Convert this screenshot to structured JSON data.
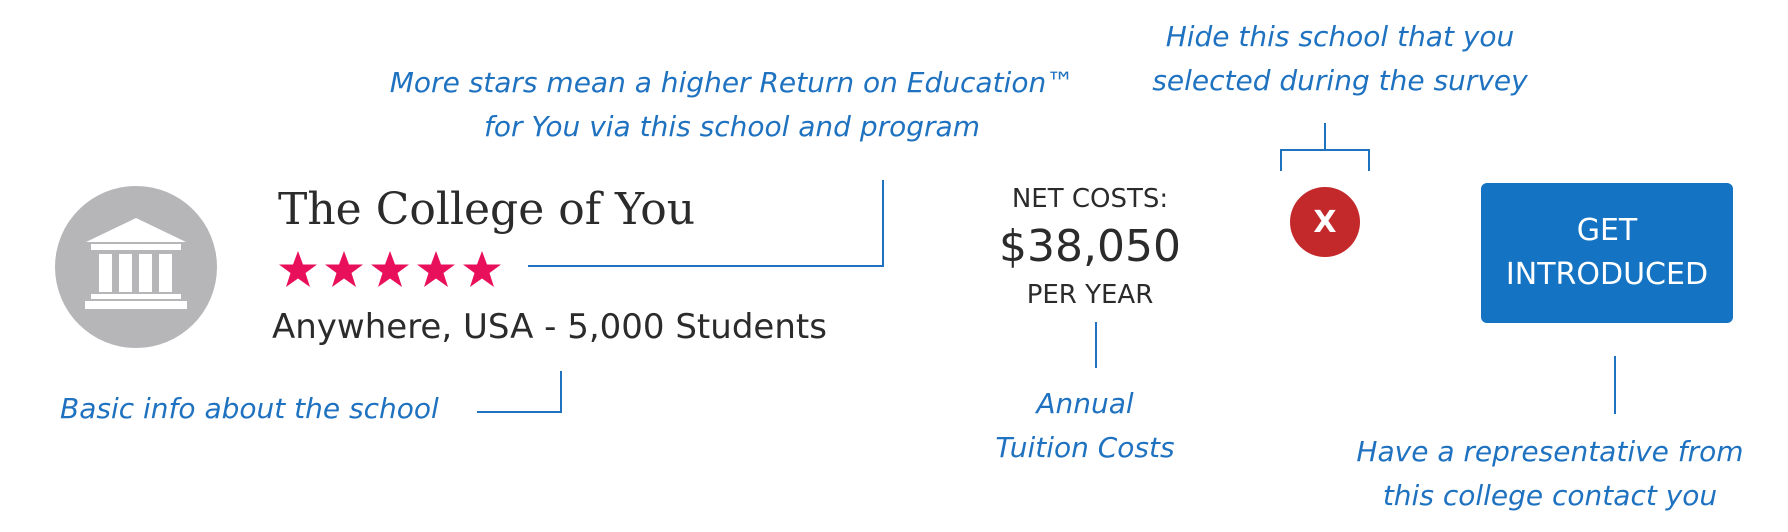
{
  "school": {
    "name": "The College of You",
    "location_students": "Anywhere, USA - 5,000 Students",
    "rating": 5,
    "rating_max": 5,
    "icon": "institution-icon"
  },
  "costs": {
    "label": "NET COSTS:",
    "amount": "$38,050",
    "period": "PER YEAR"
  },
  "actions": {
    "hide_label": "X",
    "cta_label": "GET INTRODUCED"
  },
  "annotations": {
    "stars_line1": "More stars mean a higher Return on Education™",
    "stars_line2": "for You via this school and program",
    "hide_line1": "Hide this school that you",
    "hide_line2": "selected during the survey",
    "basic_info": "Basic info about the school",
    "tuition_line1": "Annual",
    "tuition_line2": "Tuition Costs",
    "cta_line1": "Have a representative from",
    "cta_line2": "this college contact you"
  },
  "colors": {
    "accent_blue": "#1474c3",
    "annotation_blue": "#1f72c0",
    "star_pink": "#e8105a",
    "hide_red": "#c3282a",
    "icon_gray": "#b6b6b9"
  }
}
